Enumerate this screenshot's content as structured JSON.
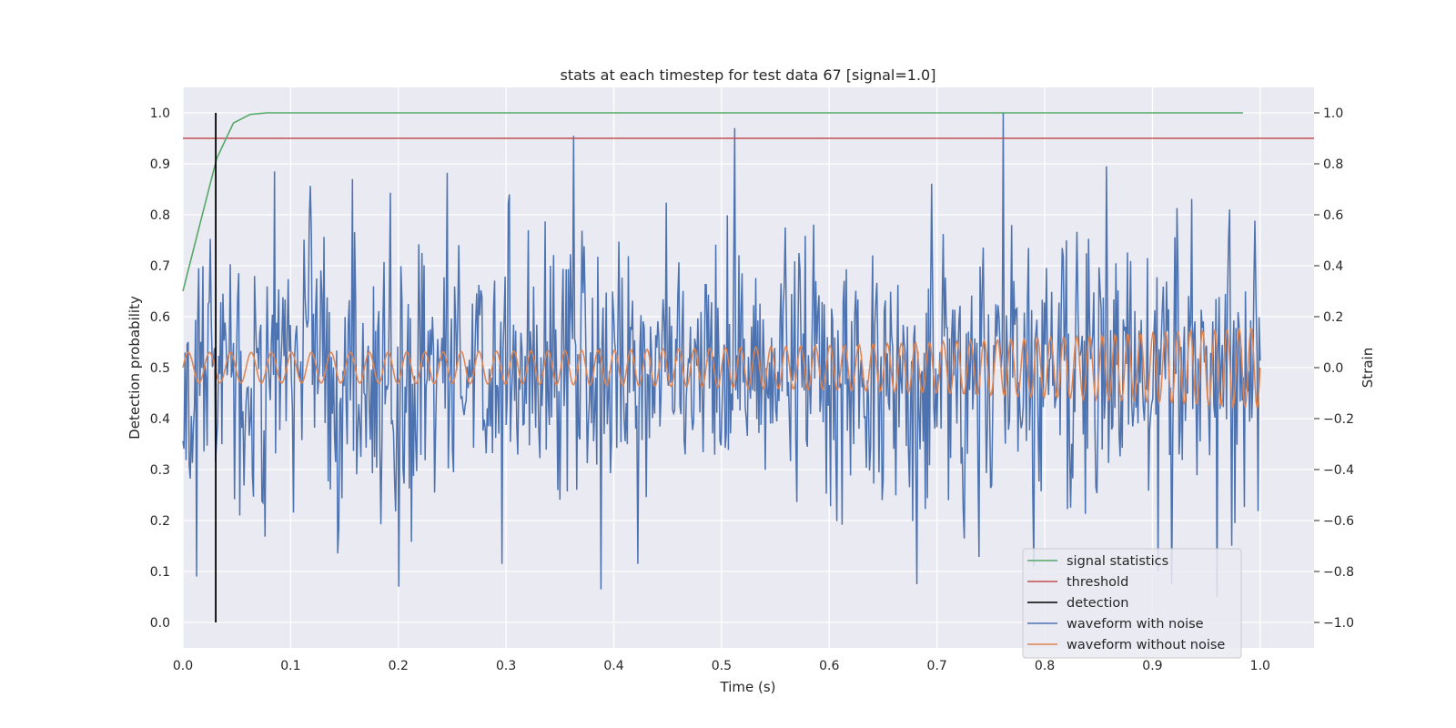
{
  "chart_data": {
    "type": "line",
    "title": "stats at each timestep for test data 67 [signal=1.0]",
    "xlabel": "Time (s)",
    "ylabel_left": "Detection probability",
    "ylabel_right": "Strain",
    "xlim": [
      0.0,
      1.05
    ],
    "ylim_left": [
      -0.05,
      1.05
    ],
    "ylim_right": [
      -1.1,
      1.1
    ],
    "x_ticks": [
      "0.0",
      "0.1",
      "0.2",
      "0.3",
      "0.4",
      "0.5",
      "0.6",
      "0.7",
      "0.8",
      "0.9",
      "1.0"
    ],
    "y_ticks_left": [
      "0.0",
      "0.1",
      "0.2",
      "0.3",
      "0.4",
      "0.5",
      "0.6",
      "0.7",
      "0.8",
      "0.9",
      "1.0"
    ],
    "y_ticks_right": [
      "−1.0",
      "−0.8",
      "−0.6",
      "−0.4",
      "−0.2",
      "0.0",
      "0.2",
      "0.4",
      "0.6",
      "0.8",
      "1.0"
    ],
    "grid": true,
    "legend_position": "lower-right",
    "colors": {
      "signal_statistics": "#55a868",
      "threshold": "#c44e52",
      "detection": "#000000",
      "waveform_with_noise": "#4c72b0",
      "waveform_without_noise": "#dd8452",
      "plot_background": "#eaeaf2",
      "grid": "#ffffff"
    },
    "series": [
      {
        "name": "signal statistics",
        "axis": "left",
        "x": [
          0.0,
          0.0156,
          0.0313,
          0.0469,
          0.0625,
          0.0781,
          0.1,
          0.2,
          0.4,
          0.6,
          0.8,
          0.984
        ],
        "y": [
          0.65,
          0.78,
          0.91,
          0.98,
          0.997,
          1.0,
          1.0,
          1.0,
          1.0,
          1.0,
          1.0,
          1.0
        ]
      },
      {
        "name": "threshold",
        "axis": "left",
        "x": [
          0.0,
          1.05
        ],
        "y": [
          0.95,
          0.95
        ]
      },
      {
        "name": "detection",
        "axis": "left",
        "x": [
          0.0305,
          0.0305
        ],
        "y": [
          0.0,
          1.0
        ]
      },
      {
        "name": "waveform with noise",
        "axis": "right",
        "x_range": [
          0.0,
          1.0
        ],
        "samples": 1024,
        "noise_std": 0.26,
        "peaks": [
          [
            0.013,
            -0.82
          ],
          [
            0.085,
            0.77
          ],
          [
            0.117,
            0.58
          ],
          [
            0.157,
            0.74
          ],
          [
            0.2,
            -0.86
          ],
          [
            0.303,
            0.68
          ],
          [
            0.296,
            -0.77
          ],
          [
            0.363,
            0.91
          ],
          [
            0.388,
            -0.87
          ],
          [
            0.422,
            -0.77
          ],
          [
            0.512,
            0.94
          ],
          [
            0.681,
            -0.85
          ],
          [
            0.761,
            1.0
          ],
          [
            0.79,
            -0.78
          ],
          [
            0.857,
            0.79
          ],
          [
            0.905,
            -0.8
          ],
          [
            0.918,
            -0.85
          ],
          [
            0.96,
            -0.9
          ]
        ]
      },
      {
        "name": "waveform without noise",
        "axis": "right",
        "x_range": [
          0.0,
          1.0
        ],
        "amplitude_start": 0.06,
        "amplitude_end": 0.16,
        "cycles_start": 0.0,
        "freq_start_hz": 50,
        "freq_end_hz": 90
      }
    ]
  }
}
